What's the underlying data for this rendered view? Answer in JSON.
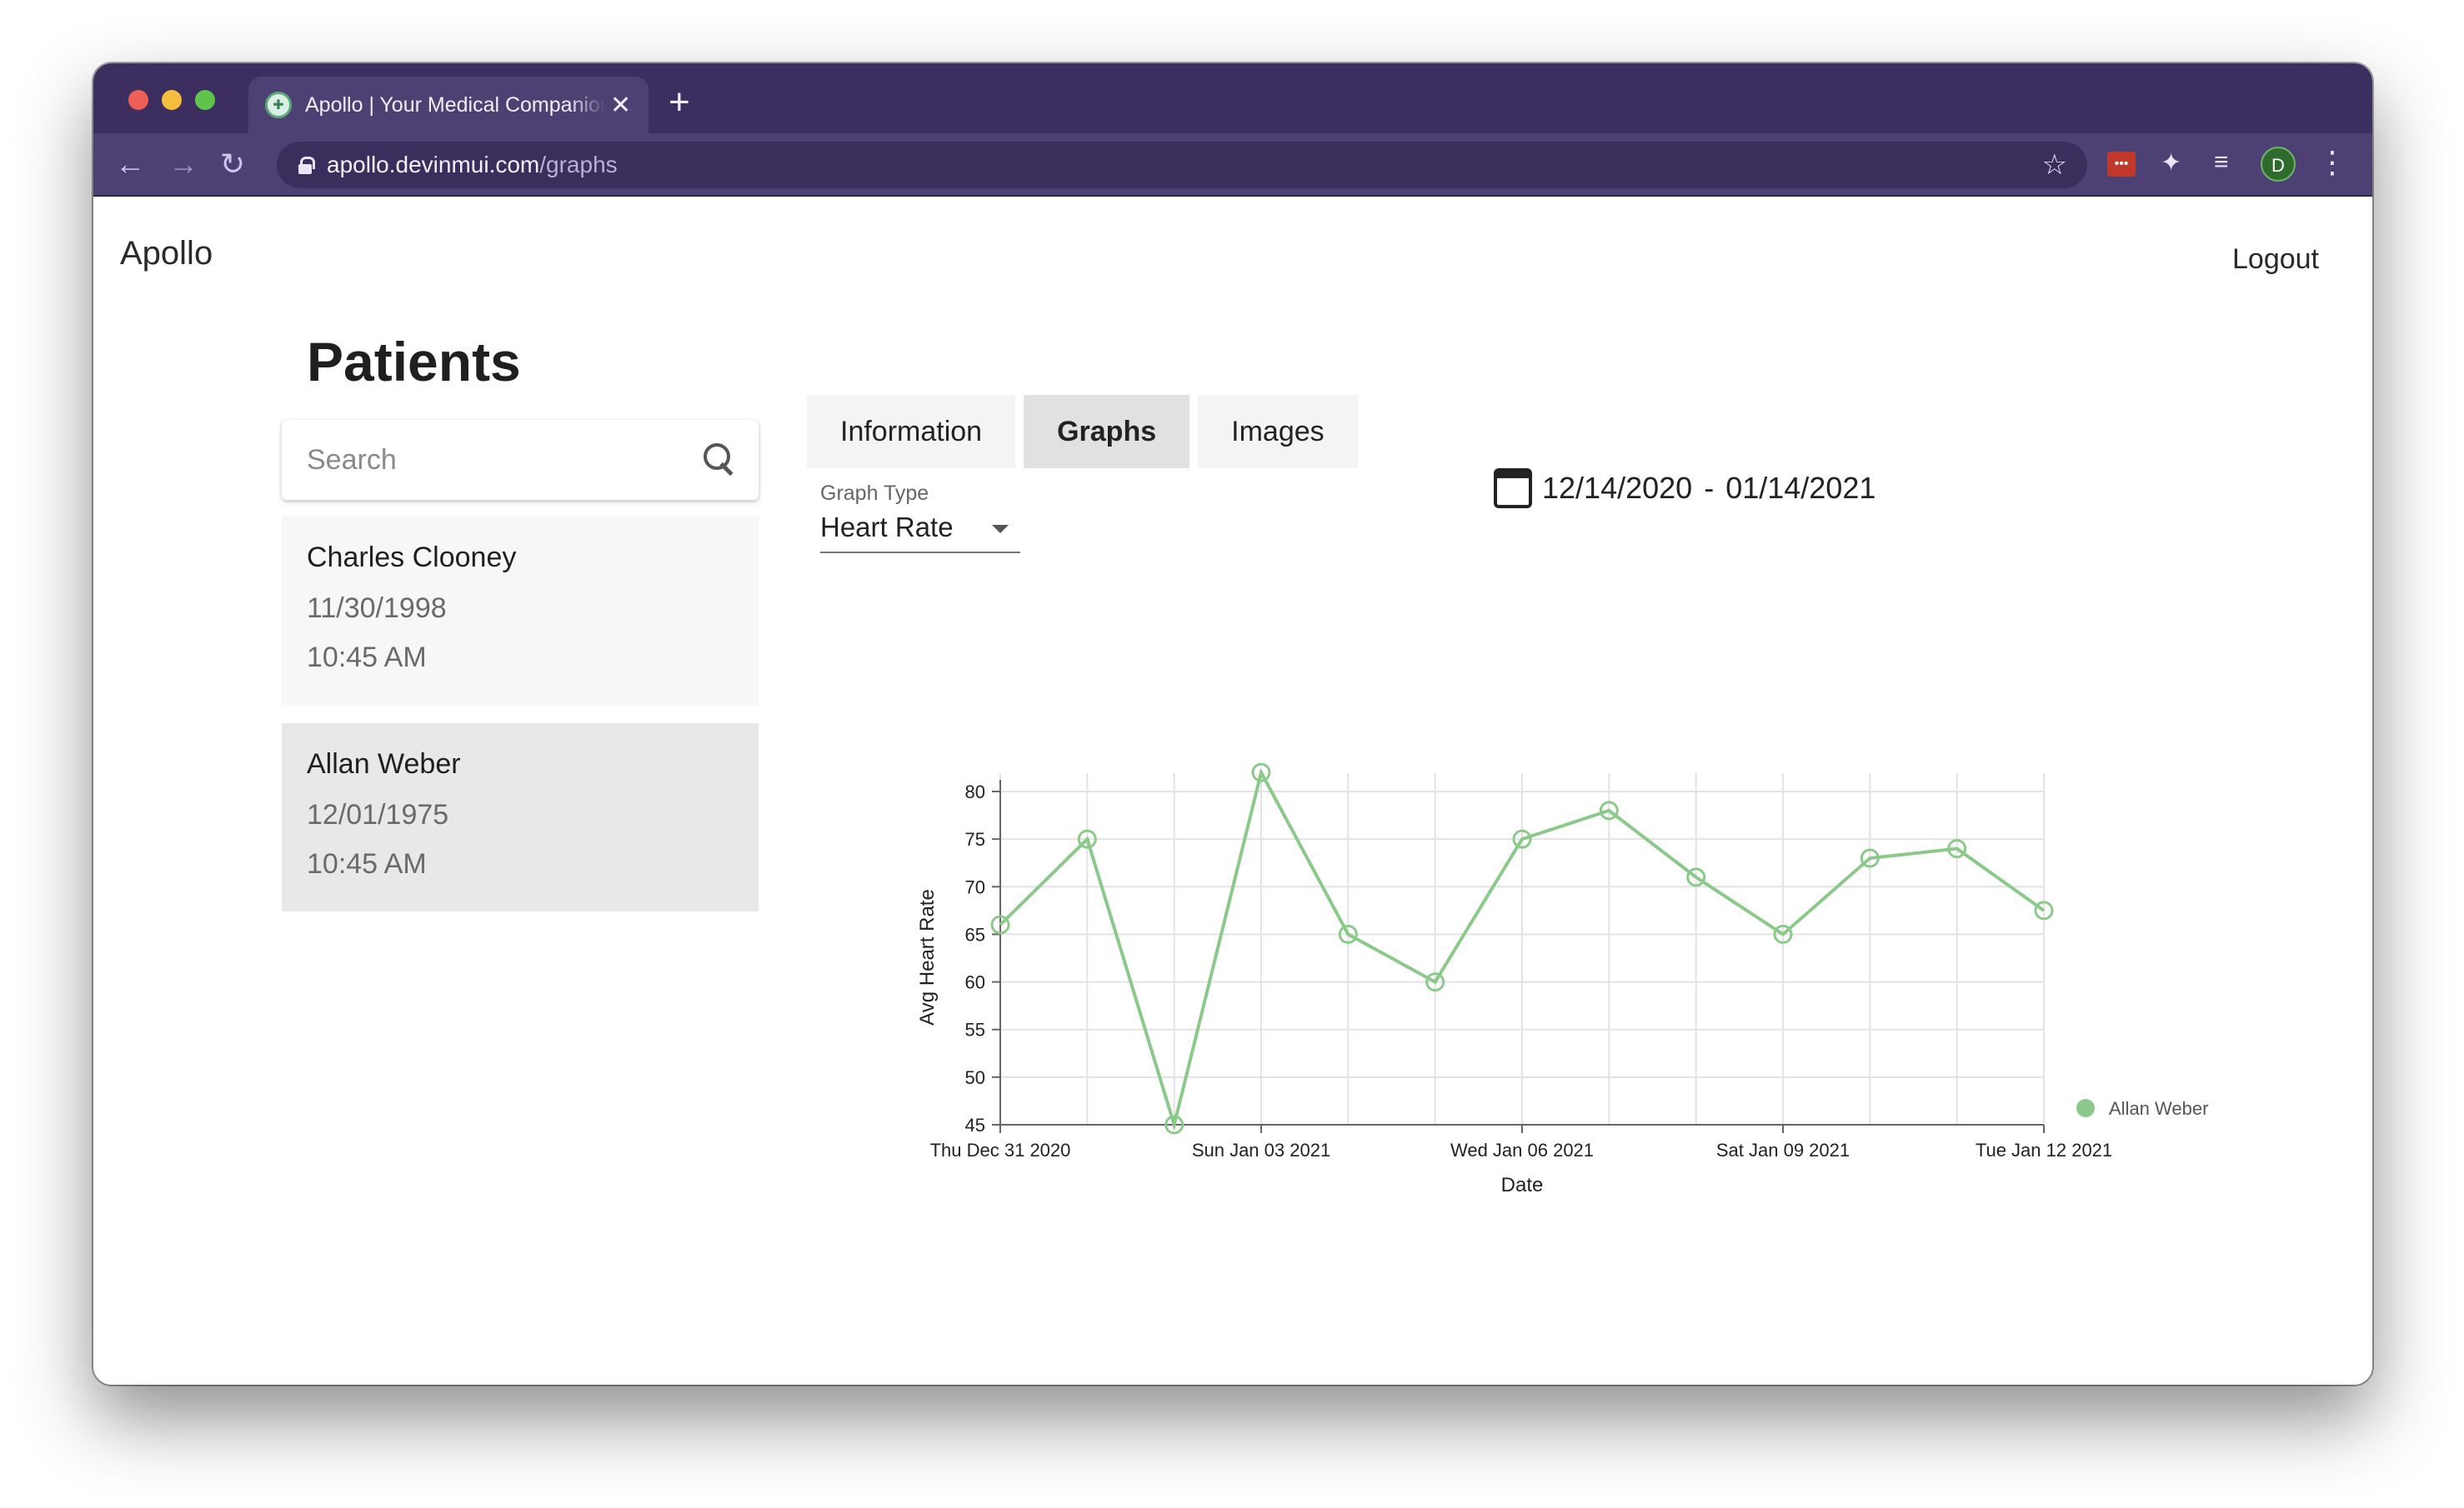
{
  "browser": {
    "tab_title": "Apollo | Your Medical Companion",
    "tab_close": "✕",
    "new_tab": "+",
    "url_host": "apollo.devinmui.com",
    "url_path": "/graphs",
    "avatar_initial": "D",
    "nav_back": "←",
    "nav_forward": "→",
    "nav_reload": "↻",
    "bookmark": "☆",
    "menu": "⋮"
  },
  "app": {
    "brand": "Apollo",
    "logout": "Logout"
  },
  "sidebar": {
    "title": "Patients",
    "search_placeholder": "Search",
    "patients": [
      {
        "name": "Charles Clooney",
        "dob": "11/30/1998",
        "time": "10:45 AM",
        "selected": false
      },
      {
        "name": "Allan Weber",
        "dob": "12/01/1975",
        "time": "10:45 AM",
        "selected": true
      }
    ]
  },
  "main": {
    "tabs": [
      {
        "label": "Information",
        "active": false
      },
      {
        "label": "Graphs",
        "active": true
      },
      {
        "label": "Images",
        "active": false
      }
    ],
    "graph_type_label": "Graph Type",
    "graph_type_value": "Heart Rate",
    "date_start": "12/14/2020",
    "date_sep": "-",
    "date_end": "01/14/2021"
  },
  "colors": {
    "titlebar": "#3c2f60",
    "toolbar": "#4d4173",
    "series": "#8bc98a",
    "card_default": "#f7f7f7",
    "card_selected": "#e8e8e8"
  },
  "chart_data": {
    "type": "line",
    "xlabel": "Date",
    "ylabel": "Avg Heart Rate",
    "ylim": [
      45,
      80
    ],
    "yticks": [
      45,
      50,
      55,
      60,
      65,
      70,
      75,
      80
    ],
    "x_tick_labels": [
      "Thu Dec 31 2020",
      "Sun Jan 03 2021",
      "Wed Jan 06 2021",
      "Sat Jan 09 2021",
      "Tue Jan 12 2021"
    ],
    "x": [
      "2020-12-31",
      "2021-01-01",
      "2021-01-02",
      "2021-01-03",
      "2021-01-04",
      "2021-01-05",
      "2021-01-06",
      "2021-01-07",
      "2021-01-08",
      "2021-01-09",
      "2021-01-10",
      "2021-01-11",
      "2021-01-12"
    ],
    "grid": true,
    "legend": "right",
    "series": [
      {
        "name": "Allan Weber",
        "values": [
          66,
          75,
          45,
          82,
          65,
          60,
          75,
          78,
          71,
          65,
          73,
          74,
          67.5
        ]
      }
    ]
  }
}
